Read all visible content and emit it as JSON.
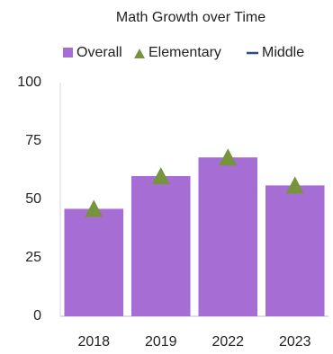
{
  "chart_data": {
    "type": "bar",
    "title": "Math Growth over Time",
    "categories": [
      "2018",
      "2019",
      "2022",
      "2023"
    ],
    "series": [
      {
        "name": "Overall",
        "type": "bar",
        "color": "#a66dd4",
        "values": [
          46,
          60,
          68,
          56
        ]
      },
      {
        "name": "Elementary",
        "type": "marker",
        "color": "#77933c",
        "values": [
          46,
          60,
          68,
          56
        ]
      },
      {
        "name": "Middle",
        "type": "line",
        "color": "#2f4b7c",
        "values": [
          null,
          null,
          null,
          null
        ]
      }
    ],
    "ylim": [
      0,
      100
    ],
    "yticks": [
      0,
      25,
      50,
      75,
      100
    ],
    "grid": false,
    "legend": "top"
  }
}
